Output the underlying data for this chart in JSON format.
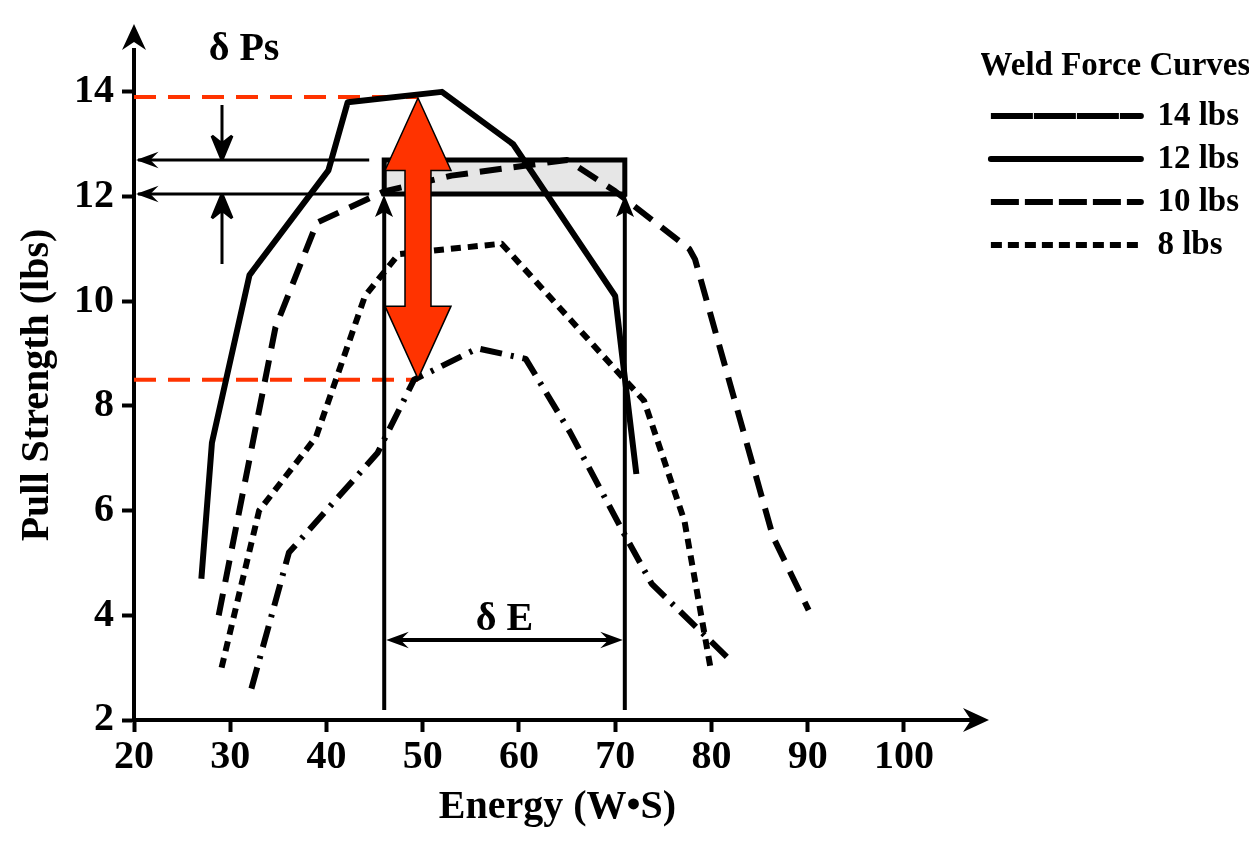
{
  "chart_data": {
    "type": "line",
    "xlabel": "Energy (W•S)",
    "ylabel": "Pull Strength (lbs)",
    "legend_title": "Weld Force Curves",
    "legend": "top right",
    "xlim": [
      20,
      108
    ],
    "xticks": [
      20,
      30,
      40,
      50,
      60,
      70,
      80,
      90,
      100
    ],
    "ylim": [
      2,
      14.8
    ],
    "yticks": [
      2,
      4,
      6,
      8,
      10,
      12,
      14
    ],
    "marker": "none",
    "series": [
      {
        "name": "14 lbs",
        "color": "#000000",
        "line_style": "dashdot",
        "x": [
          32.2,
          36.1,
          45.3,
          49.1,
          55.7,
          60.7,
          65.3,
          71.1,
          73.8,
          82.2
        ],
        "values": [
          2.6,
          5.2,
          7.1,
          8.5,
          9.1,
          8.9,
          7.5,
          5.5,
          4.6,
          3.1
        ]
      },
      {
        "name": "12 lbs",
        "color": "#000000",
        "line_style": "solid",
        "x": [
          27.0,
          28.1,
          32.0,
          40.2,
          42.2,
          52.0,
          59.4,
          70.0,
          70.7,
          72.2
        ],
        "values": [
          4.7,
          7.3,
          10.5,
          12.5,
          13.8,
          14.0,
          13.0,
          10.1,
          9.0,
          6.7
        ]
      },
      {
        "name": "10 lbs",
        "color": "#000000",
        "line_style": "dashed",
        "x": [
          28.8,
          34.7,
          39.0,
          46.0,
          53.0,
          65.0,
          70.0,
          77.7,
          78.3,
          86.4,
          90.1
        ],
        "values": [
          4.0,
          9.5,
          11.5,
          12.1,
          12.4,
          12.7,
          12.1,
          11.0,
          10.8,
          5.5,
          4.1
        ]
      },
      {
        "name": "8 lbs",
        "color": "#000000",
        "line_style": "dotted",
        "x": [
          29.1,
          33.0,
          38.9,
          44.0,
          47.5,
          58.2,
          70.5,
          73.0,
          77.2,
          79.9
        ],
        "values": [
          3.0,
          6.0,
          7.4,
          10.1,
          10.9,
          11.1,
          8.6,
          8.1,
          5.8,
          3.0
        ]
      }
    ],
    "ref_lines": [
      {
        "axis": "y",
        "value": 13.9,
        "color": "#ff3300",
        "line_style": "dashed"
      },
      {
        "axis": "y",
        "value": 8.5,
        "color": "#ff3300",
        "line_style": "dashed"
      },
      {
        "axis": "x",
        "value": 46,
        "color": "#000000",
        "line_style": "solid"
      },
      {
        "axis": "x",
        "value": 71,
        "color": "#000000",
        "line_style": "solid"
      }
    ],
    "bands": [
      {
        "axis": "y",
        "from": 12.05,
        "to": 12.7,
        "color": "#e6e6e6"
      }
    ],
    "annotations": [
      "δ Ps",
      "δ E"
    ]
  }
}
